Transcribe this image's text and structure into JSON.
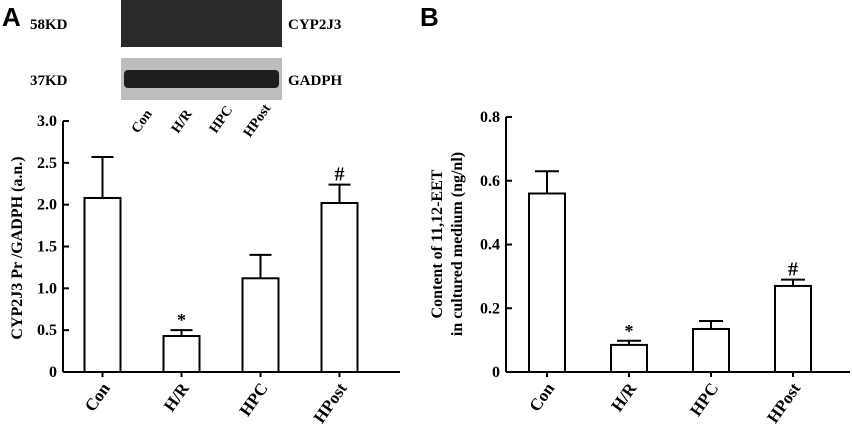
{
  "panels": {
    "a": "A",
    "b": "B"
  },
  "blot": {
    "band1": {
      "size": "58KD",
      "name": "CYP2J3"
    },
    "band2": {
      "size": "37KD",
      "name": "GADPH"
    },
    "lanes": [
      "Con",
      "H/R",
      "HPC",
      "HPost"
    ]
  },
  "chart_data": [
    {
      "type": "bar",
      "categories": [
        "Con",
        "H/R",
        "HPC",
        "HPost"
      ],
      "values": [
        2.08,
        0.43,
        1.12,
        2.02
      ],
      "errors": [
        0.49,
        0.07,
        0.28,
        0.22
      ],
      "significance": [
        "",
        "*",
        "",
        "#"
      ],
      "ylabel": "CYP2J3 Pr /GADPH (a.n.)",
      "yticks": [
        "0",
        "0.5",
        "1.0",
        "1.5",
        "2.0",
        "2.5",
        "3.0"
      ],
      "ylim": [
        0,
        3.0
      ]
    },
    {
      "type": "bar",
      "categories": [
        "Con",
        "H/R",
        "HPC",
        "HPost"
      ],
      "values": [
        0.56,
        0.085,
        0.135,
        0.27
      ],
      "errors": [
        0.07,
        0.013,
        0.025,
        0.02
      ],
      "significance": [
        "",
        "*",
        "",
        "#"
      ],
      "ylabel_line1": "Content of 11,12-EET",
      "ylabel_line2": "in cultured medium (ng/nl)",
      "yticks": [
        "0",
        "0.2",
        "0.4",
        "0.6",
        "0.8"
      ],
      "ylim": [
        0,
        0.8
      ]
    }
  ]
}
